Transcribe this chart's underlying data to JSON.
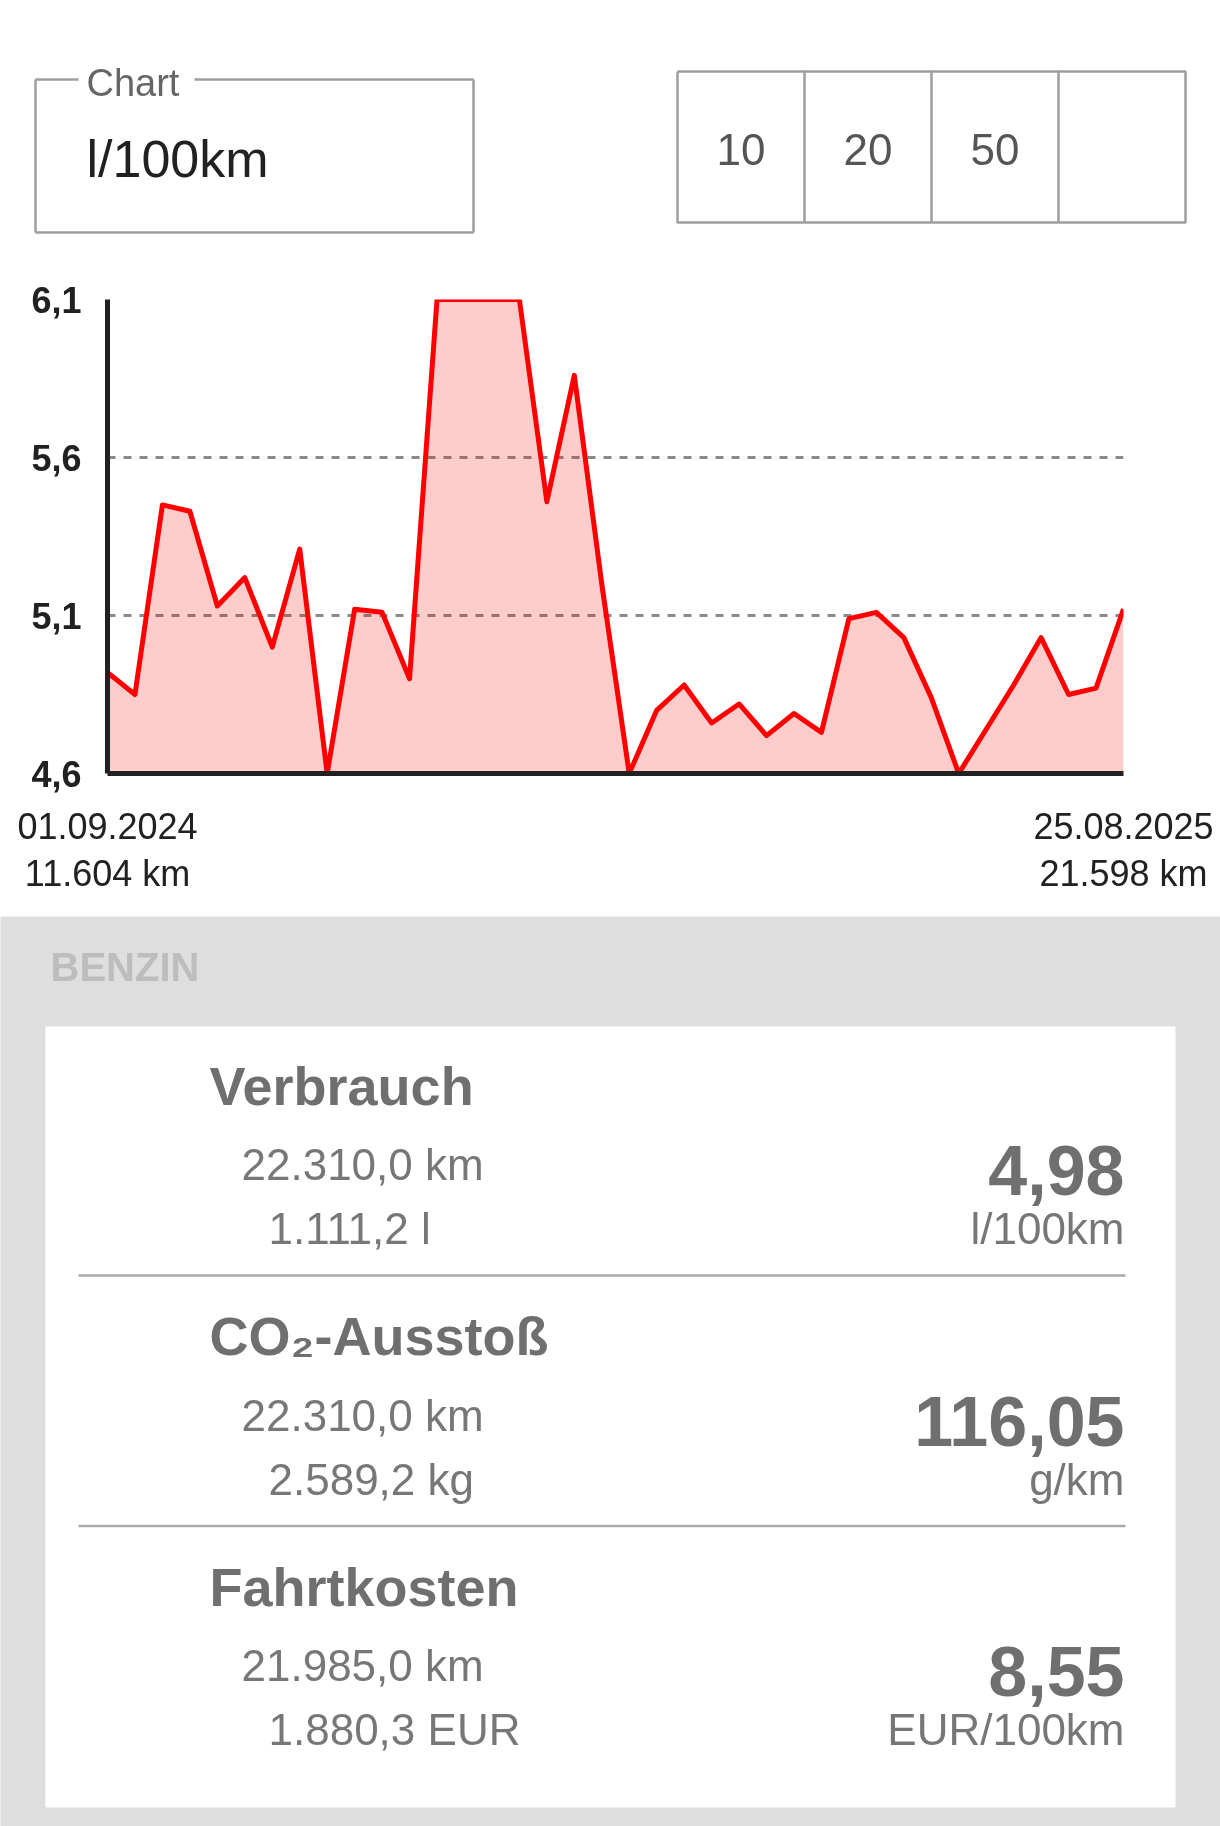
{
  "chart_data": [
    {
      "type": "area",
      "categories": [
        "01.09.2024\n11.604 km",
        null,
        null,
        null,
        null,
        null,
        null,
        null,
        null,
        null,
        null,
        null,
        null,
        null,
        null,
        null,
        null,
        null,
        null,
        null,
        null,
        null,
        null,
        null,
        null,
        null,
        null,
        null,
        null,
        null,
        null,
        null,
        null,
        null,
        null,
        null,
        null,
        "25.08.2025\n21.598 km"
      ],
      "series": [
        {
          "color": "#ff0000",
          "values": [
            4.92,
            4.85,
            5.45,
            5.43,
            5.13,
            5.22,
            5.0,
            5.31,
            4.6,
            5.12,
            5.11,
            4.9,
            6.1,
            6.1,
            6.1,
            6.1,
            5.46,
            5.86,
            5.2,
            4.6,
            4.8,
            4.88,
            4.76,
            4.82,
            4.72,
            4.79,
            4.73,
            5.09,
            5.11,
            5.03,
            4.84,
            4.6,
            4.74,
            4.88,
            5.03,
            4.85,
            4.87,
            5.12
          ]
        }
      ],
      "ylim": [
        4.6,
        6.1
      ],
      "yticks": [
        {
          "value": 4.6,
          "label": "4,6"
        },
        {
          "value": 5.1,
          "label": "5,1"
        },
        {
          "value": 5.6,
          "label": "5,6"
        },
        {
          "value": 6.1,
          "label": "6,1"
        }
      ],
      "grid": "y",
      "annotations": [
        "Chart",
        "l/100km",
        "10",
        "20",
        "50"
      ]
    },
    {
      "type": "other",
      "title": "BENZIN",
      "annotations": [
        "Verbrauch",
        "22.310,0 km",
        "1.111,2 l",
        "4,98",
        "l/100km",
        "CO₂-Ausstoß",
        "22.310,0 km",
        "2.589,2 kg",
        "116,05",
        "g/km",
        "Fahrtkosten",
        "21.985,0 km",
        "1.880,3 EUR",
        "8,55",
        "EUR/100km"
      ]
    }
  ]
}
